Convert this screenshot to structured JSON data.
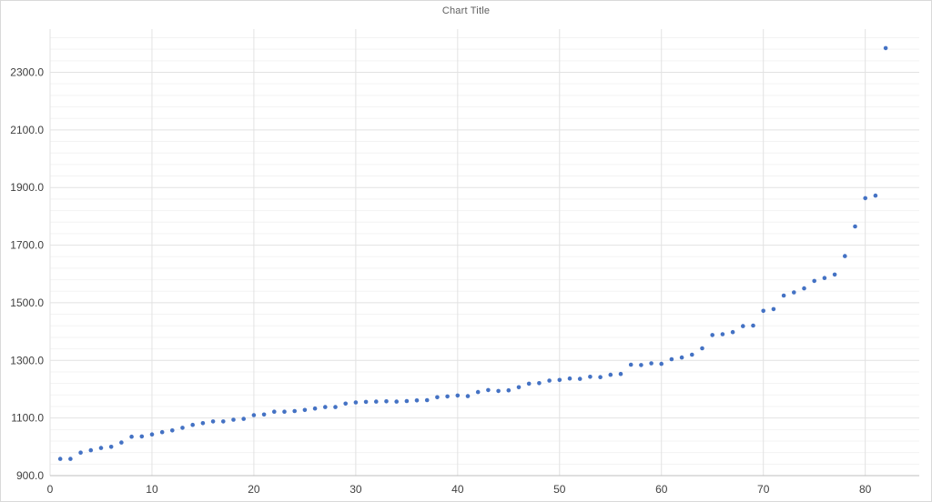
{
  "chart_data": {
    "type": "scatter",
    "title": "Chart Title",
    "x": [
      1,
      2,
      3,
      4,
      5,
      6,
      7,
      8,
      9,
      10,
      11,
      12,
      13,
      14,
      15,
      16,
      17,
      18,
      19,
      20,
      21,
      22,
      23,
      24,
      25,
      26,
      27,
      28,
      29,
      30,
      31,
      32,
      33,
      34,
      35,
      36,
      37,
      38,
      39,
      40,
      41,
      42,
      43,
      44,
      45,
      46,
      47,
      48,
      49,
      50,
      51,
      52,
      53,
      54,
      55,
      56,
      57,
      58,
      59,
      60,
      61,
      62,
      63,
      64,
      65,
      66,
      67,
      68,
      69,
      70,
      71,
      72,
      73,
      74,
      75,
      76,
      77,
      78,
      79,
      80,
      81,
      82
    ],
    "y": [
      958,
      958,
      980,
      988,
      996,
      1000,
      1015,
      1035,
      1036,
      1043,
      1051,
      1057,
      1066,
      1076,
      1082,
      1088,
      1088,
      1094,
      1097,
      1110,
      1112,
      1122,
      1122,
      1124,
      1128,
      1133,
      1138,
      1138,
      1150,
      1154,
      1156,
      1157,
      1158,
      1157,
      1159,
      1161,
      1162,
      1172,
      1175,
      1178,
      1176,
      1190,
      1197,
      1194,
      1196,
      1207,
      1219,
      1221,
      1230,
      1232,
      1237,
      1236,
      1243,
      1242,
      1250,
      1253,
      1285,
      1284,
      1290,
      1288,
      1304,
      1310,
      1320,
      1342,
      1388,
      1391,
      1398,
      1419,
      1421,
      1472,
      1478,
      1525,
      1536,
      1550,
      1576,
      1586,
      1598,
      1662,
      1765,
      1863,
      1872,
      2384
    ],
    "xlabel": "",
    "ylabel": "",
    "x_tick_labels": [
      "0",
      "10",
      "20",
      "30",
      "40",
      "50",
      "60",
      "70",
      "80"
    ],
    "y_tick_labels": [
      "900.0",
      "1100.0",
      "1300.0",
      "1500.0",
      "1700.0",
      "1900.0",
      "2100.0",
      "2300.0"
    ],
    "xlim": [
      0,
      85.3
    ],
    "ylim": [
      900,
      2450
    ],
    "y_major_unit": 200,
    "y_minor_unit": 40,
    "x_major_unit": 10,
    "grid": "horizontal-major-and-minor, vertical-major",
    "legend": "none",
    "marker_color": "#4472C4",
    "major_grid_color": "#e2e2e2",
    "minor_grid_color": "#f3f3f3",
    "axis_line_color": "#bfbfbf",
    "label_color": "#404040",
    "title_color": "#5f5f5f"
  }
}
